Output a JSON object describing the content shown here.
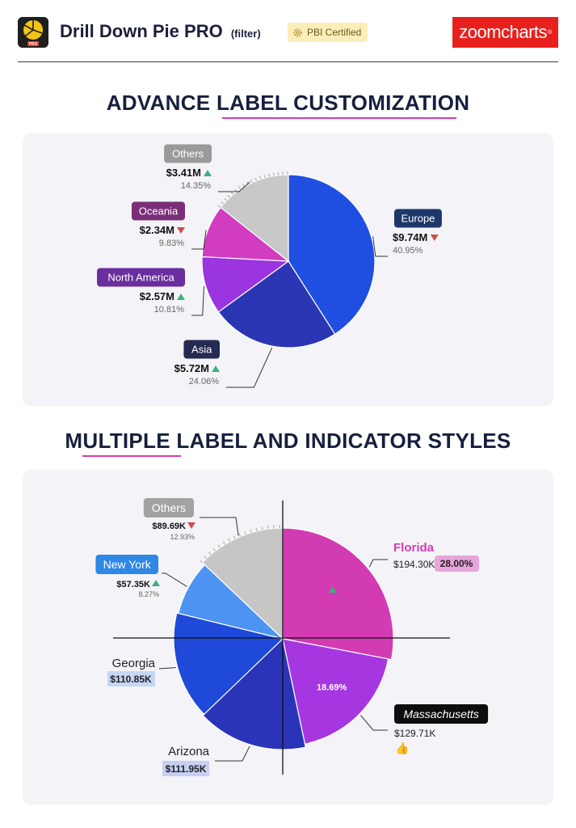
{
  "header": {
    "title": "Drill Down Pie PRO",
    "title_suffix": "(filter)",
    "badge": "PBI Certified",
    "brand": "zoomcharts",
    "app_icon_label": "PRO"
  },
  "sections": [
    {
      "title": "ADVANCE LABEL CUSTOMIZATION"
    },
    {
      "title": "MULTIPLE LABEL AND INDICATOR STYLES"
    }
  ],
  "chart_data": [
    {
      "type": "pie",
      "title": "ADVANCE LABEL CUSTOMIZATION",
      "slices": [
        {
          "label": "Europe",
          "value_label": "$9.74M",
          "value": 9.74,
          "percent": "40.95%",
          "trend": "down",
          "color": "#1f4fe0",
          "label_bg": "#1d3768"
        },
        {
          "label": "Asia",
          "value_label": "$5.72M",
          "value": 5.72,
          "percent": "24.06%",
          "trend": "up",
          "color": "#2a36b3",
          "label_bg": "#252a52"
        },
        {
          "label": "North America",
          "value_label": "$2.57M",
          "value": 2.57,
          "percent": "10.81%",
          "trend": "up",
          "color": "#9a35e0",
          "label_bg": "#6a2e9e"
        },
        {
          "label": "Oceania",
          "value_label": "$2.34M",
          "value": 2.34,
          "percent": "9.83%",
          "trend": "down",
          "color": "#d23cc0",
          "label_bg": "#7a2e78"
        },
        {
          "label": "Others",
          "value_label": "$3.41M",
          "value": 3.41,
          "percent": "14.35%",
          "trend": "up",
          "color": "#c8c8c8",
          "label_bg": "#9a9a9a"
        }
      ]
    },
    {
      "type": "pie",
      "title": "MULTIPLE LABEL AND INDICATOR STYLES",
      "slices": [
        {
          "label": "Florida",
          "value_label": "$194.30K",
          "value": 194.3,
          "percent": "28.00%",
          "color": "#d33bb2"
        },
        {
          "label": "Massachusetts",
          "value_label": "$129.71K",
          "value": 129.71,
          "percent": "18.69%",
          "color": "#a637e0"
        },
        {
          "label": "Arizona",
          "value_label": "$111.95K",
          "value": 111.95,
          "color": "#2a34b8"
        },
        {
          "label": "Georgia",
          "value_label": "$110.85K",
          "value": 110.85,
          "color": "#1f49d9"
        },
        {
          "label": "New York",
          "value_label": "$57.35K",
          "value": 57.35,
          "percent": "8.27%",
          "trend": "up",
          "color": "#4d93f2"
        },
        {
          "label": "Others",
          "value_label": "$89.69K",
          "value": 89.69,
          "percent": "12.93%",
          "trend": "down",
          "color": "#c6c6c6"
        }
      ]
    }
  ],
  "colors": {
    "accent_underline": "#d83ab7",
    "up": "#3fb07a",
    "down": "#c9504a",
    "panel_bg": "#f4f4f8"
  }
}
